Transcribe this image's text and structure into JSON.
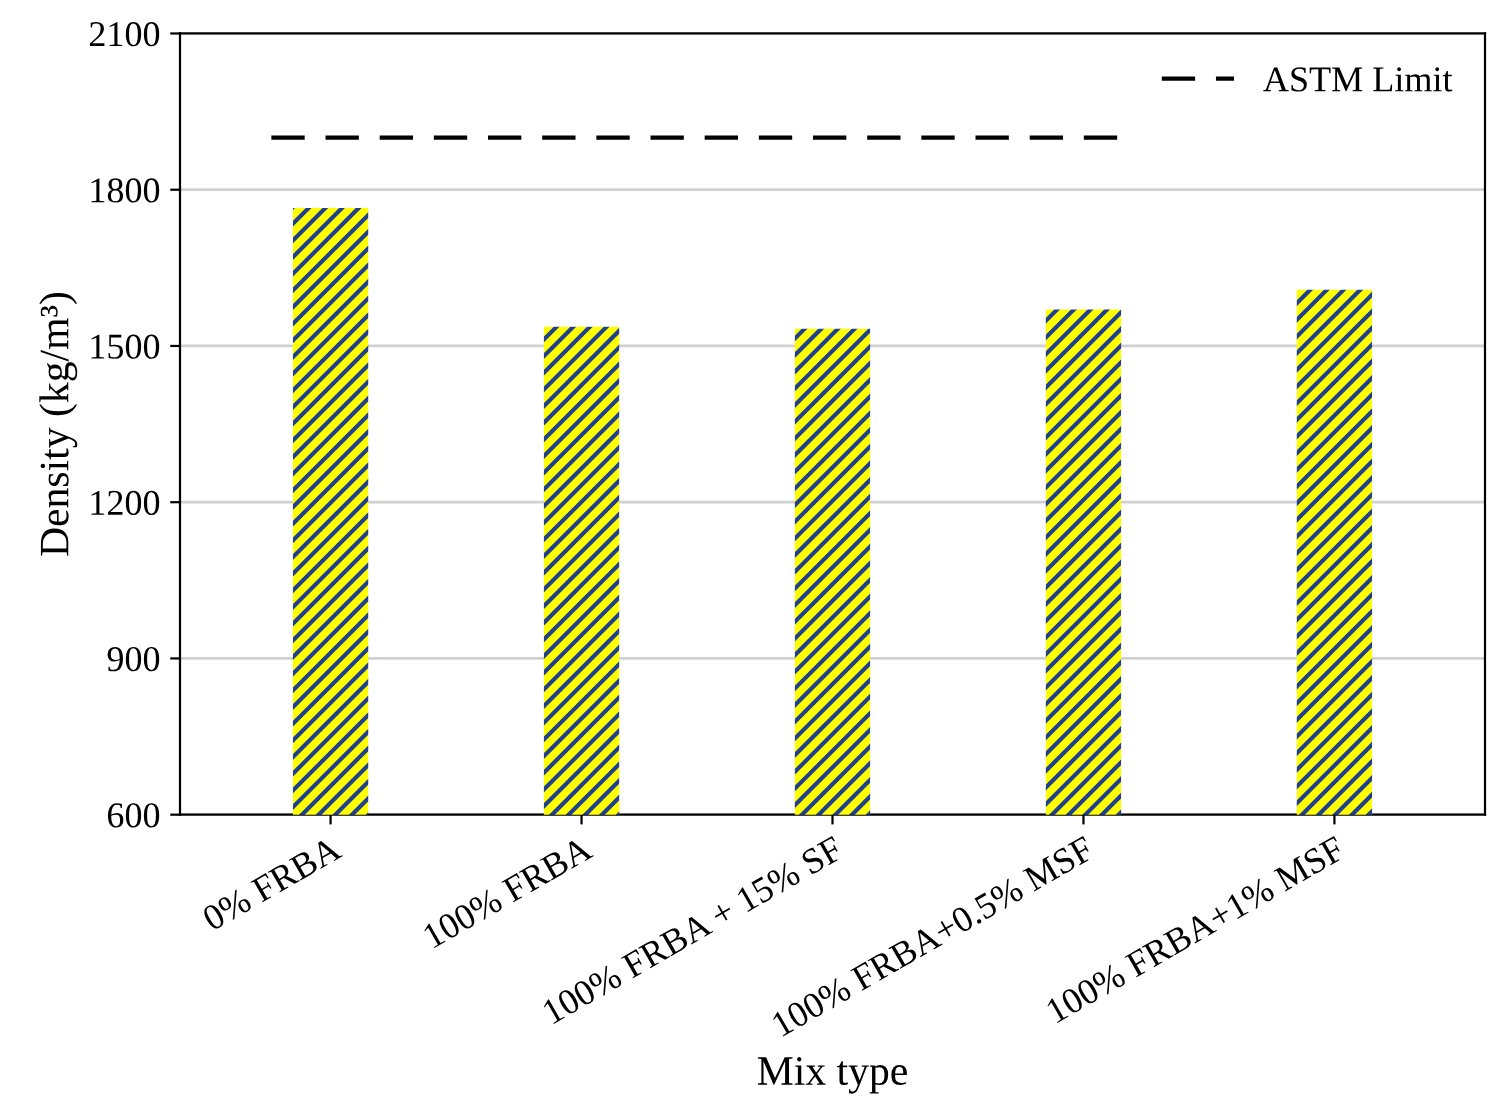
{
  "chart_data": {
    "type": "bar",
    "xlabel": "Mix type",
    "ylabel": "Density (kg/m³)",
    "categories": [
      "0% FRBA",
      "100% FRBA",
      "100% FRBA + 15% SF",
      "100% FRBA+0.5% MSF",
      "100% FRBA+1% MSF"
    ],
    "values": [
      1765,
      1537,
      1533,
      1570,
      1608
    ],
    "color": "#ffff00",
    "ylim": [
      600,
      2100
    ],
    "yticks": [
      600,
      900,
      1200,
      1500,
      1800,
      2100
    ],
    "grid": "y",
    "legend": "top right",
    "ref_lines": [
      {
        "axis": "y",
        "value": 1900,
        "label": "ASTM Limit",
        "color": "#000000",
        "line_style": "dashed"
      }
    ]
  }
}
